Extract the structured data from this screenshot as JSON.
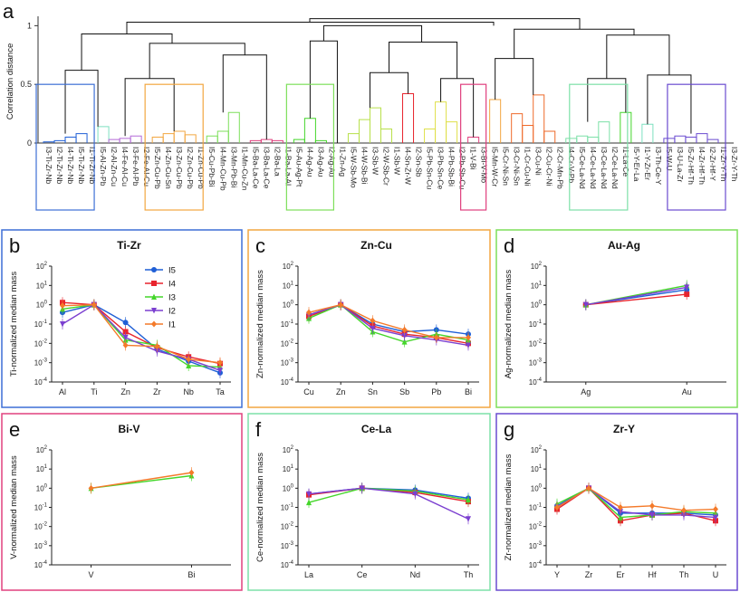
{
  "colors": {
    "I5": "#1f5fd6",
    "I4": "#e8242d",
    "I3": "#44d62a",
    "I2": "#7b3fd0",
    "I1": "#f47a2a",
    "frame_b": "#3d6fd6",
    "frame_c": "#f2a640",
    "frame_d": "#7ddf5a",
    "frame_e": "#e0407e",
    "frame_f": "#7de0a8",
    "frame_g": "#6a4bd0",
    "dendro": "#111111"
  },
  "chart_data": [
    {
      "type": "dendrogram",
      "panel": "a",
      "ylabel": "Correlation distance",
      "ylim": [
        0,
        1.08
      ],
      "yticks": [
        "0",
        "0.5",
        "1"
      ],
      "leaves": [
        "I3-Ti-Zr-Nb",
        "I2-Ti-Zr-Nb",
        "I4-Ti-Zr-Nb",
        "I5-Ti-Zr-Nb",
        "I1-Ti-Zr-Nb",
        "I5-Al-Zn-Pb",
        "I2-Al-Zn-Cu",
        "I4-Fe-Al-Cu",
        "I3-Fe-Al-Pb",
        "I2-Fe-Al-Cu",
        "I5-Zn-Cu-Pb",
        "I4-Zn-Cu-Sn",
        "I3-Zn-Cu-Pb",
        "I2-Zn-Cu-Pb",
        "I1-Zn-Cu-Pb",
        "I5-Cu-Pb-Bi",
        "I4-Mn-Cu-Pb",
        "I3-Mn-Pb-Bi",
        "I1-Mn-Cu-Zn",
        "I5-Ba-La-Ce",
        "I3-Ba-La-Ce",
        "I2-Ba-La",
        "I1-Ba-La-Al",
        "I5-Au-Ag-Pt",
        "I4-Ag-Au",
        "I3-Ag-Au",
        "I2-Ag-Au",
        "I1-Zn-Ag",
        "I5-W-Sb-Mo",
        "I4-W-Sb-Bi",
        "I3-Sb-W",
        "I2-W-Sb-Cr",
        "I1-Sb-W",
        "I4-Sn-Zr-W",
        "I2-Sn-Sb",
        "I5-Pb-Sn-Cu",
        "I3-Pb-Sn-Ce",
        "I4-Pb-Sb-Bi",
        "I2-Pb-Sb-Cu",
        "I1-V-Bi",
        "I3-Bi-V-Mo",
        "I5-Mn-W-Cr",
        "I5-Cr-Ni-Sn",
        "I3-Cr-Ni-Sn",
        "I1-Cr-Cu-Ni",
        "I3-Cu-Ni",
        "I2-Cu-Cr-Ni",
        "I2-Cr-Mn-Pb",
        "I4-Cr-V-Pb",
        "I5-Ce-La-Nd",
        "I4-Ce-La-Nd",
        "I3-Ce-La-Nd",
        "I2-Ce-La-Nd",
        "I1-La-Ce",
        "I5-Y-Er-La",
        "I1-Y-Zr-Er",
        "I3-Th-Ce-Y",
        "I5-W-U",
        "I3-U-La-Zr",
        "I5-Zr-Hf-Th",
        "I4-Zr-Hf-Th",
        "I2-Zr-Hf-Y",
        "I1-Zr-Y-Th",
        "I3-Zr-Y-Th"
      ],
      "clusters": [
        {
          "name": "Ti-Zr",
          "color": "#3d6fd6"
        },
        {
          "name": "Zn-Cu",
          "color": "#f2a640"
        },
        {
          "name": "Au-Ag",
          "color": "#7ddf5a"
        },
        {
          "name": "Bi-V",
          "color": "#e0407e"
        },
        {
          "name": "Ce-La",
          "color": "#7de0a8"
        },
        {
          "name": "Zr-Y",
          "color": "#6a4bd0"
        }
      ]
    },
    {
      "type": "line",
      "panel": "b",
      "title": "Ti-Zr",
      "ylabel": "Ti-normalized median mass",
      "categories": [
        "Al",
        "Ti",
        "Zn",
        "Zr",
        "Nb",
        "Ta"
      ],
      "yscale": "log",
      "ylim": [
        0.0001,
        100
      ],
      "series": [
        {
          "name": "I5",
          "values": [
            0.4,
            1,
            0.12,
            0.005,
            0.0012,
            0.0003
          ]
        },
        {
          "name": "I4",
          "values": [
            1.3,
            1,
            0.04,
            0.006,
            0.002,
            0.0009
          ]
        },
        {
          "name": "I3",
          "values": [
            0.6,
            1,
            0.015,
            0.008,
            0.0007,
            0.0006
          ]
        },
        {
          "name": "I2",
          "values": [
            0.1,
            1,
            0.02,
            0.004,
            0.0015,
            0.0004
          ]
        },
        {
          "name": "I1",
          "values": [
            0.9,
            1,
            0.008,
            0.007,
            0.0015,
            0.001
          ]
        }
      ]
    },
    {
      "type": "line",
      "panel": "c",
      "title": "Zn-Cu",
      "ylabel": "Zn-normalized median mass",
      "categories": [
        "Cu",
        "Zn",
        "Sn",
        "Sb",
        "Pb",
        "Bi"
      ],
      "yscale": "log",
      "ylim": [
        0.0001,
        100
      ],
      "series": [
        {
          "name": "I5",
          "values": [
            0.3,
            1,
            0.1,
            0.04,
            0.05,
            0.03
          ]
        },
        {
          "name": "I4",
          "values": [
            0.25,
            1,
            0.08,
            0.03,
            0.02,
            0.01
          ]
        },
        {
          "name": "I3",
          "values": [
            0.2,
            1,
            0.04,
            0.012,
            0.03,
            0.015
          ]
        },
        {
          "name": "I2",
          "values": [
            0.3,
            1,
            0.06,
            0.025,
            0.015,
            0.008
          ]
        },
        {
          "name": "I1",
          "values": [
            0.4,
            1,
            0.15,
            0.05,
            0.02,
            0.02
          ]
        }
      ]
    },
    {
      "type": "line",
      "panel": "d",
      "title": "Au-Ag",
      "ylabel": "Ag-normalized median mass",
      "categories": [
        "Ag",
        "Au"
      ],
      "yscale": "log",
      "ylim": [
        0.0001,
        100
      ],
      "series": [
        {
          "name": "I5",
          "values": [
            1,
            6
          ]
        },
        {
          "name": "I4",
          "values": [
            1,
            3.5
          ]
        },
        {
          "name": "I3",
          "values": [
            1,
            10
          ]
        },
        {
          "name": "I2",
          "values": [
            1,
            8
          ]
        }
      ]
    },
    {
      "type": "line",
      "panel": "e",
      "title": "Bi-V",
      "ylabel": "V-normalized median mass",
      "categories": [
        "V",
        "Bi"
      ],
      "yscale": "log",
      "ylim": [
        0.0001,
        100
      ],
      "series": [
        {
          "name": "I3",
          "values": [
            1,
            4.5
          ]
        },
        {
          "name": "I1",
          "values": [
            1,
            6.5
          ]
        }
      ]
    },
    {
      "type": "line",
      "panel": "f",
      "title": "Ce-La",
      "ylabel": "Ce-normalized median mass",
      "categories": [
        "La",
        "Ce",
        "Nd",
        "Th"
      ],
      "yscale": "log",
      "ylim": [
        0.0001,
        100
      ],
      "series": [
        {
          "name": "I5",
          "values": [
            0.5,
            1,
            0.8,
            0.3
          ]
        },
        {
          "name": "I4",
          "values": [
            0.45,
            1,
            0.6,
            0.2
          ]
        },
        {
          "name": "I3",
          "values": [
            0.18,
            1,
            0.7,
            0.25
          ]
        },
        {
          "name": "I2",
          "values": [
            0.5,
            1,
            0.5,
            0.025
          ]
        }
      ]
    },
    {
      "type": "line",
      "panel": "g",
      "title": "Zr-Y",
      "ylabel": "Zr-normalized median mass",
      "categories": [
        "Y",
        "Zr",
        "Er",
        "Hf",
        "Th",
        "U"
      ],
      "yscale": "log",
      "ylim": [
        0.0001,
        100
      ],
      "series": [
        {
          "name": "I5",
          "values": [
            0.12,
            1,
            0.05,
            0.05,
            0.05,
            0.04
          ]
        },
        {
          "name": "I4",
          "values": [
            0.08,
            1,
            0.02,
            0.04,
            0.05,
            0.02
          ]
        },
        {
          "name": "I3",
          "values": [
            0.15,
            1,
            0.03,
            0.04,
            0.06,
            0.05
          ]
        },
        {
          "name": "I2",
          "values": [
            0.1,
            1,
            0.06,
            0.04,
            0.04,
            0.03
          ]
        },
        {
          "name": "I1",
          "values": [
            0.1,
            1,
            0.1,
            0.12,
            0.07,
            0.08
          ]
        }
      ]
    }
  ],
  "legend": [
    "I5",
    "I4",
    "I3",
    "I2",
    "I1"
  ]
}
